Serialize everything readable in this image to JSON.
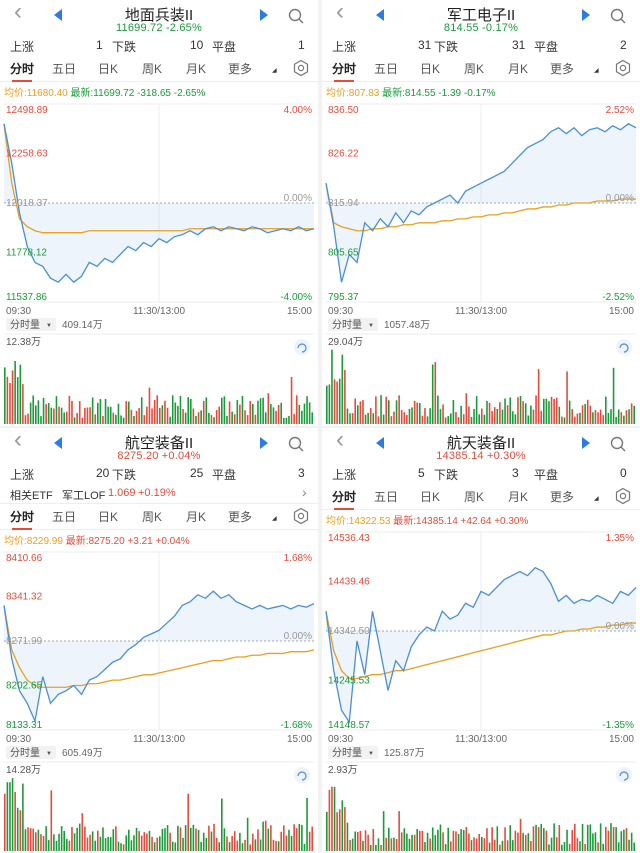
{
  "panels": [
    {
      "title": "地面兵装II",
      "subtitle": "11699.72  -2.65%",
      "up_label": "上涨",
      "up": "1",
      "down_label": "下跌",
      "down": "10",
      "flat_label": "平盘",
      "flat": "1",
      "tabs": [
        "分时",
        "五日",
        "日K",
        "周K",
        "月K",
        "更多"
      ],
      "avg_price": "均价:11680.40",
      "latest": "最新:11699.72 -318.65 -2.65%",
      "y_labels": [
        "12498.89",
        "12258.63",
        "12018.37",
        "11778.12",
        "11537.86"
      ],
      "pct_labels": [
        "4.00%",
        "0.00%",
        "-4.00%"
      ],
      "x_labels": [
        "09:30",
        "11:30/13:00",
        "15:00"
      ],
      "vol_label": "分时量",
      "vol_total": "409.14万",
      "vol_max": "12.38万"
    },
    {
      "title": "军工电子II",
      "subtitle": "814.55  -0.17%",
      "up_label": "上涨",
      "up": "31",
      "down_label": "下跌",
      "down": "31",
      "flat_label": "平盘",
      "flat": "2",
      "tabs": [
        "分时",
        "五日",
        "日K",
        "周K",
        "月K",
        "更多"
      ],
      "avg_price": "均价:807.83",
      "latest": "最新:814.55 -1.39 -0.17%",
      "y_labels": [
        "836.50",
        "826.22",
        "815.94",
        "805.65",
        "795.37"
      ],
      "pct_labels": [
        "2.52%",
        "0.00%",
        "-2.52%"
      ],
      "x_labels": [
        "09:30",
        "11:30/13:00",
        "15:00"
      ],
      "vol_label": "分时量",
      "vol_total": "1057.48万",
      "vol_max": "29.04万"
    },
    {
      "title": "航空装备II",
      "subtitle": "8275.20  +0.04%",
      "up_label": "上涨",
      "up": "20",
      "down_label": "下跌",
      "down": "25",
      "flat_label": "平盘",
      "flat": "3",
      "etf_label": "相关ETF",
      "etf_name": "军工LOF",
      "etf_price": "1.069",
      "etf_pct": "+0.19%",
      "tabs": [
        "分时",
        "五日",
        "日K",
        "周K",
        "月K",
        "更多"
      ],
      "avg_price": "均价:8229.99",
      "latest": "最新:8275.20 +3.21 +0.04%",
      "y_labels": [
        "8410.66",
        "8341.32",
        "8271.99",
        "8202.65",
        "8133.31"
      ],
      "pct_labels": [
        "1.68%",
        "0.00%",
        "-1.68%"
      ],
      "x_labels": [
        "09:30",
        "11:30/13:00",
        "15:00"
      ],
      "vol_label": "分时量",
      "vol_total": "605.49万",
      "vol_max": "14.28万"
    },
    {
      "title": "航天装备II",
      "subtitle": "14385.14  +0.30%",
      "up_label": "上涨",
      "up": "5",
      "down_label": "下跌",
      "down": "3",
      "flat_label": "平盘",
      "flat": "0",
      "tabs": [
        "分时",
        "五日",
        "日K",
        "周K",
        "月K",
        "更多"
      ],
      "avg_price": "均价:14322.53",
      "latest": "最新:14385.14 +42.64 +0.30%",
      "y_labels": [
        "14536.43",
        "14439.46",
        "14342.50",
        "14245.53",
        "14148.57"
      ],
      "pct_labels": [
        "1.35%",
        "0.00%",
        "-1.35%"
      ],
      "x_labels": [
        "09:30",
        "11:30/13:00",
        "15:00"
      ],
      "vol_label": "分时量",
      "vol_total": "125.87万",
      "vol_max": "2.93万"
    }
  ],
  "colors": {
    "up": "#e34b3b",
    "down": "#1a9b3a",
    "price": "#4a8fd4",
    "avg": "#e8a020",
    "accent": "#2b7be4"
  }
}
